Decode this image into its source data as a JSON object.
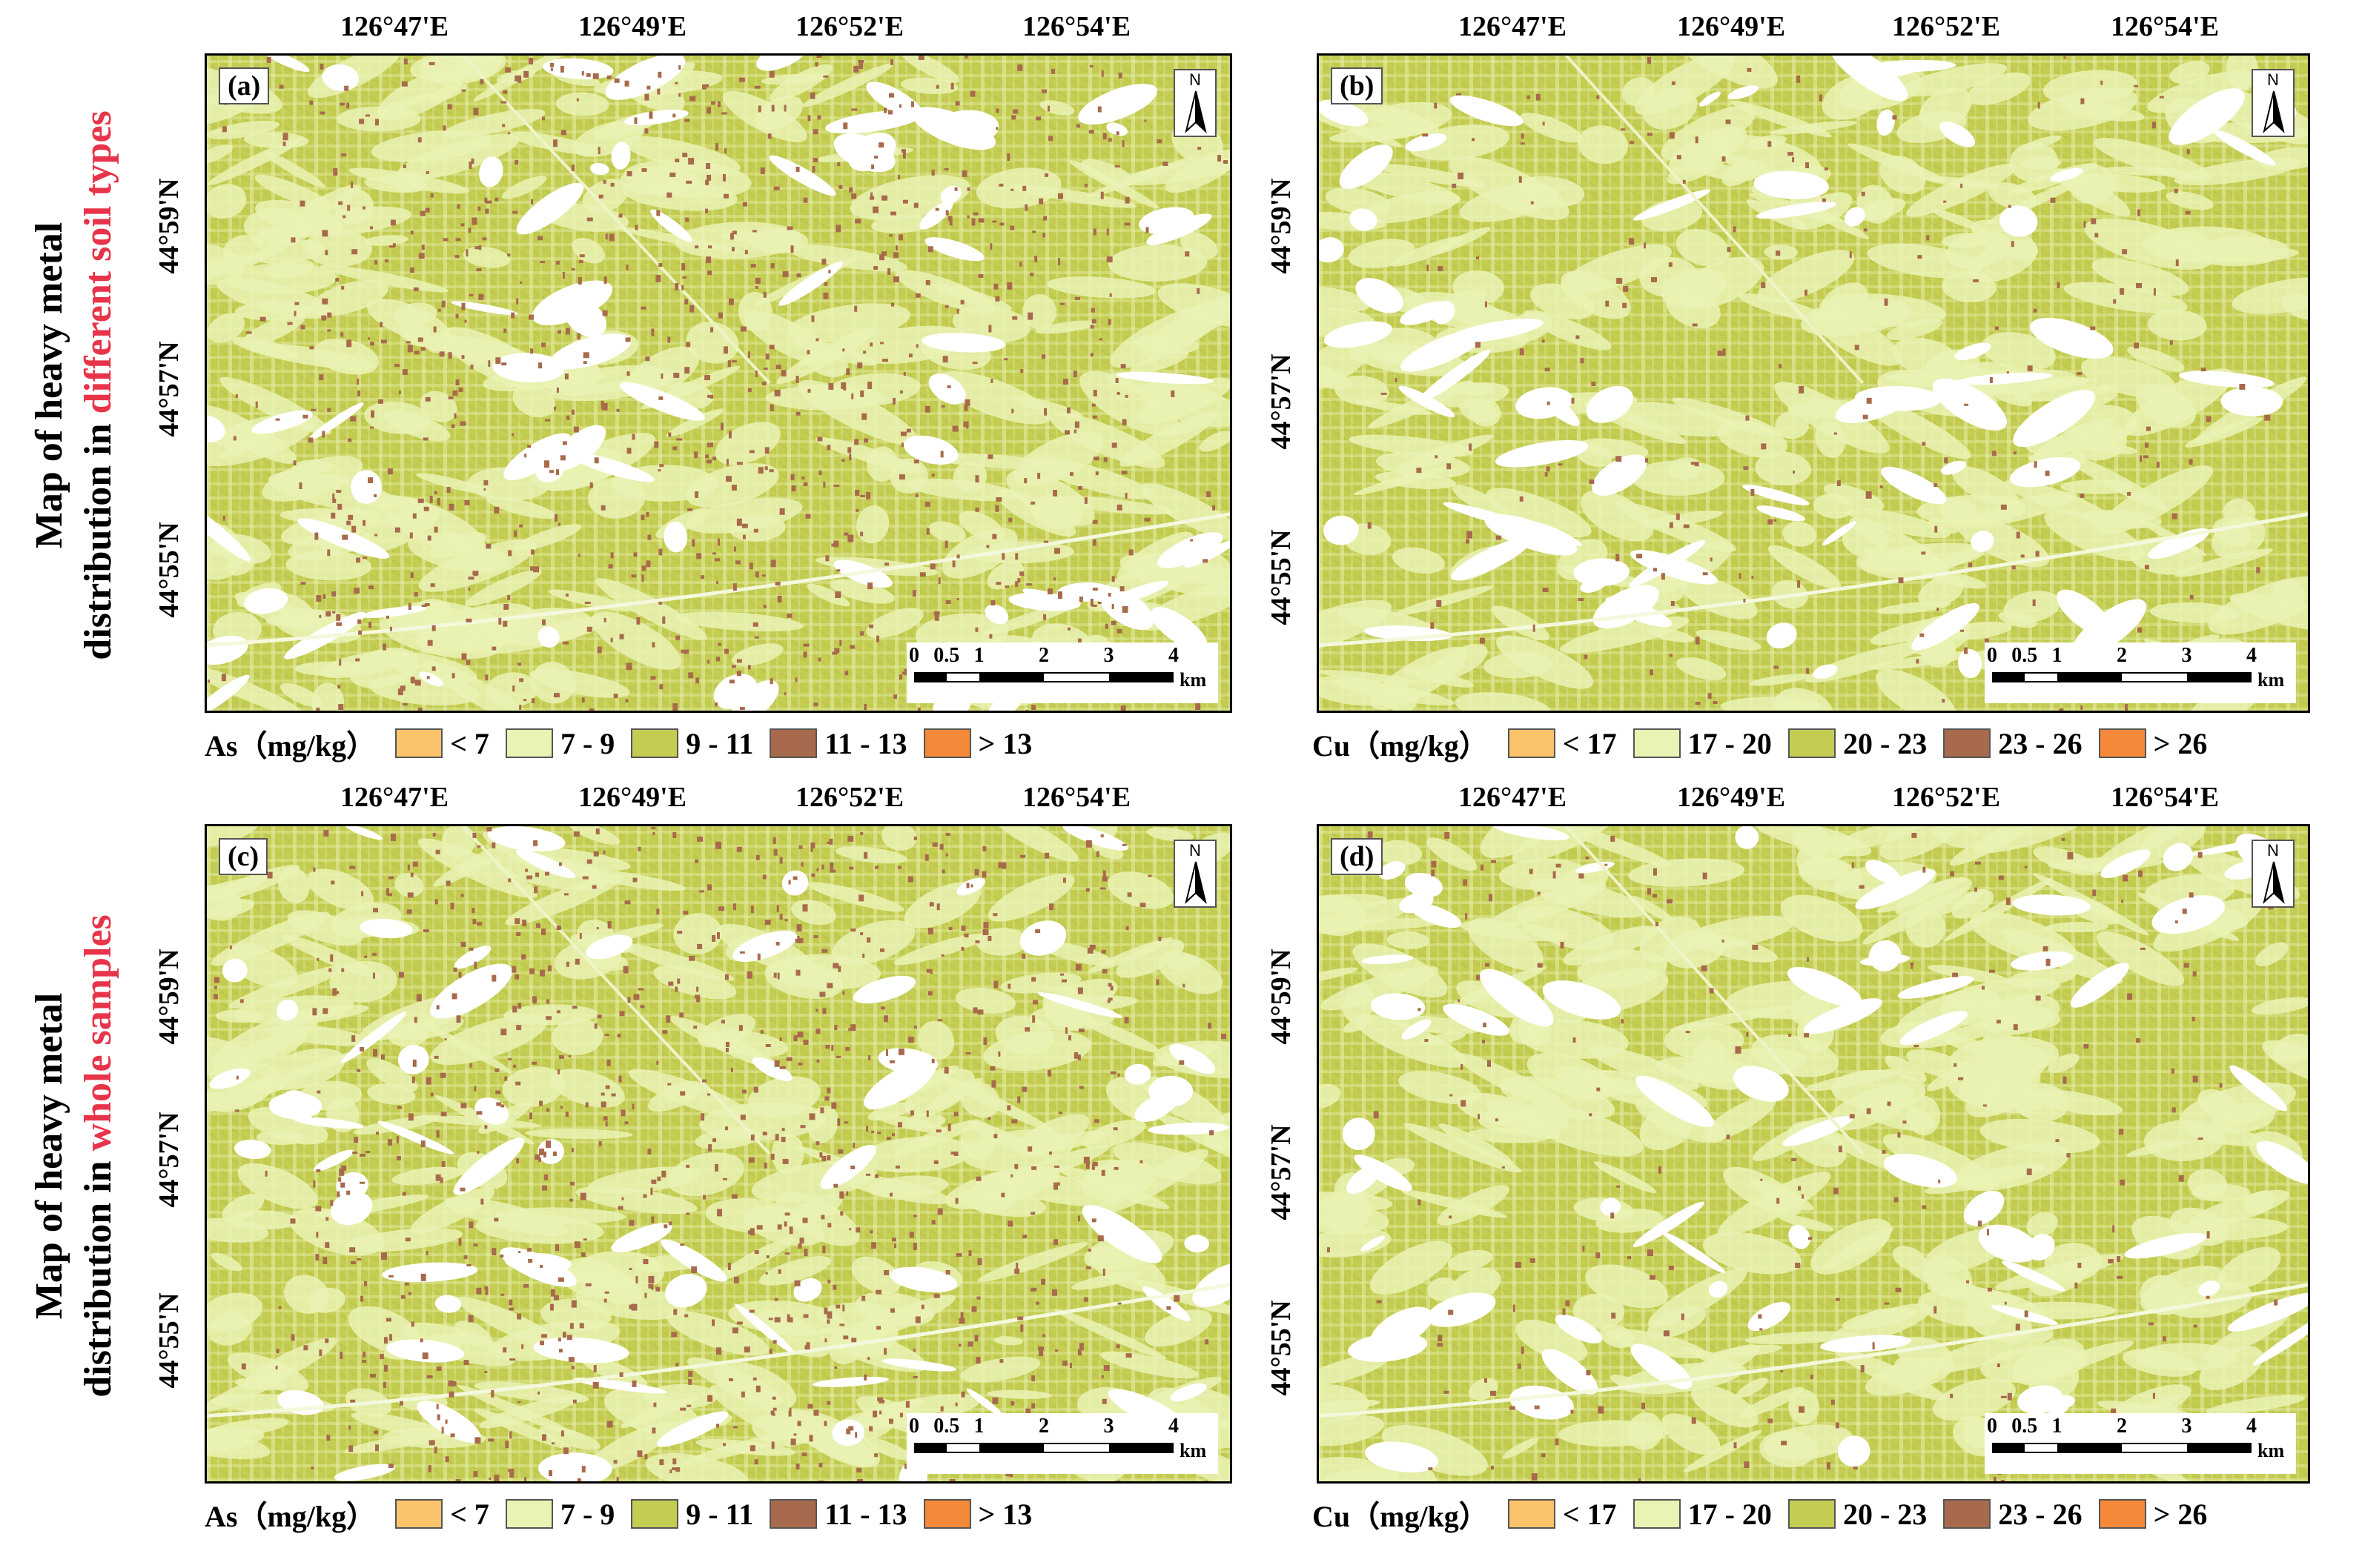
{
  "rows": [
    {
      "prefix": "Map of heavy metal",
      "line2_prefix": "distribution in ",
      "highlight": "different soil types"
    },
    {
      "prefix": "Map of heavy metal",
      "line2_prefix": "distribution in ",
      "highlight": "whole samples"
    }
  ],
  "colors": {
    "class1": "#fcc46a",
    "class2": "#eaf2b4",
    "class3": "#c4cd52",
    "class4": "#a86a4c",
    "class5": "#f5893a",
    "highlight": "#e8344a"
  },
  "panels": [
    {
      "label": "(a)",
      "metal": "As",
      "lon_ticks": [
        "126°47'E",
        "126°49'E",
        "126°52'E",
        "126°54'E"
      ],
      "lat_ticks": [
        "44°59'N",
        "44°57'N",
        "44°55'N"
      ],
      "legend": {
        "title": "As（mg/kg）",
        "classes": [
          "< 7",
          "7 - 9",
          "9 - 11",
          "11 - 13",
          "> 13"
        ]
      },
      "scale": {
        "ticks": [
          "0",
          "0.5",
          "1",
          "2",
          "3",
          "4"
        ],
        "unit": "km"
      },
      "north": "N"
    },
    {
      "label": "(b)",
      "metal": "Cu",
      "lon_ticks": [
        "126°47'E",
        "126°49'E",
        "126°52'E",
        "126°54'E"
      ],
      "lat_ticks": [
        "44°59'N",
        "44°57'N",
        "44°55'N"
      ],
      "legend": {
        "title": "Cu（mg/kg）",
        "classes": [
          "< 17",
          "17 - 20",
          "20 - 23",
          "23 - 26",
          "> 26"
        ]
      },
      "scale": {
        "ticks": [
          "0",
          "0.5",
          "1",
          "2",
          "3",
          "4"
        ],
        "unit": "km"
      },
      "north": "N"
    },
    {
      "label": "(c)",
      "metal": "As",
      "lon_ticks": [
        "126°47'E",
        "126°49'E",
        "126°52'E",
        "126°54'E"
      ],
      "lat_ticks": [
        "44°59'N",
        "44°57'N",
        "44°55'N"
      ],
      "legend": {
        "title": "As（mg/kg）",
        "classes": [
          "< 7",
          "7 - 9",
          "9 - 11",
          "11 - 13",
          "> 13"
        ]
      },
      "scale": {
        "ticks": [
          "0",
          "0.5",
          "1",
          "2",
          "3",
          "4"
        ],
        "unit": "km"
      },
      "north": "N"
    },
    {
      "label": "(d)",
      "metal": "Cu",
      "lon_ticks": [
        "126°47'E",
        "126°49'E",
        "126°52'E",
        "126°54'E"
      ],
      "lat_ticks": [
        "44°59'N",
        "44°57'N",
        "44°55'N"
      ],
      "legend": {
        "title": "Cu（mg/kg）",
        "classes": [
          "< 17",
          "17 - 20",
          "20 - 23",
          "23 - 26",
          "> 26"
        ]
      },
      "scale": {
        "ticks": [
          "0",
          "0.5",
          "1",
          "2",
          "3",
          "4"
        ],
        "unit": "km"
      },
      "north": "N"
    }
  ]
}
